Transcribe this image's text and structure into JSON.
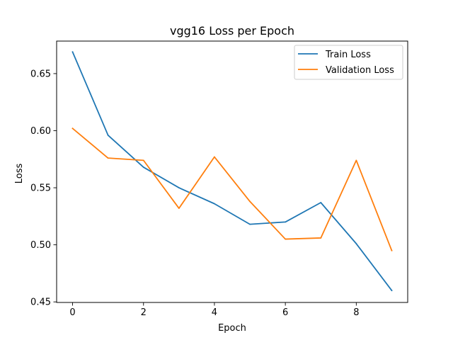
{
  "chart_data": {
    "type": "line",
    "title": "vgg16 Loss per Epoch",
    "xlabel": "Epoch",
    "ylabel": "Loss",
    "x": [
      0,
      1,
      2,
      3,
      4,
      5,
      6,
      7,
      8,
      9
    ],
    "xlim": [
      -0.45,
      9.45
    ],
    "ylim": [
      0.4495,
      0.6785
    ],
    "xticks": [
      0,
      2,
      4,
      6,
      8
    ],
    "yticks": [
      0.45,
      0.5,
      0.55,
      0.6,
      0.65
    ],
    "ytick_labels": [
      "0.45",
      "0.50",
      "0.55",
      "0.60",
      "0.65"
    ],
    "grid": false,
    "legend_position": "top-right",
    "series": [
      {
        "name": "Train Loss",
        "color": "#1f77b4",
        "values": [
          0.669,
          0.596,
          0.568,
          0.55,
          0.536,
          0.518,
          0.52,
          0.537,
          0.501,
          0.46
        ]
      },
      {
        "name": "Validation Loss",
        "color": "#ff7f0e",
        "values": [
          0.602,
          0.576,
          0.574,
          0.532,
          0.577,
          0.538,
          0.505,
          0.506,
          0.574,
          0.495
        ]
      }
    ]
  }
}
